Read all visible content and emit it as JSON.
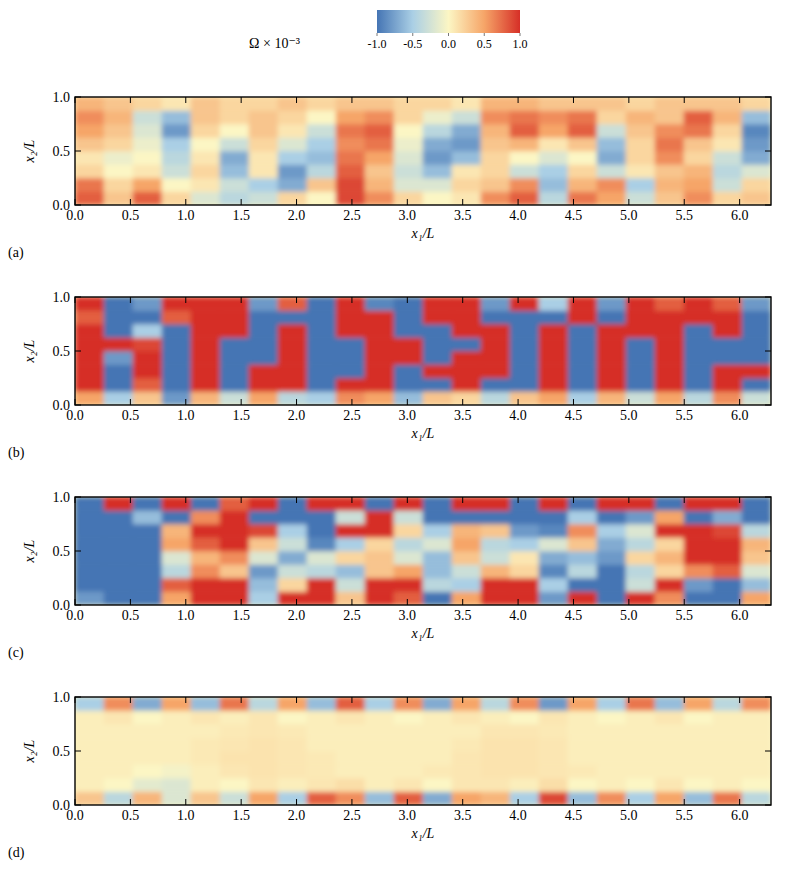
{
  "colorbar": {
    "title": "Ω × 10⁻³",
    "range": [
      -1,
      1
    ],
    "ticks": [
      {
        "value": -1,
        "label": "-1.0"
      },
      -0.5,
      {
        "value": 0,
        "label": "0.0"
      },
      0.5,
      {
        "value": 1,
        "label": "1.0"
      }
    ]
  },
  "chart_data": [
    {
      "type": "heatmap",
      "label": "(a)",
      "x_label": "x₁/L",
      "y_label": "x₂/L",
      "xlim": [
        0,
        6.2832
      ],
      "ylim": [
        0,
        1
      ],
      "xticks": [
        {
          "value": 0,
          "label": "0.0"
        },
        0.5,
        {
          "value": 1,
          "label": "1.0"
        },
        1.5,
        {
          "value": 2,
          "label": "2.0"
        },
        2.5,
        {
          "value": 3,
          "label": "3.0"
        },
        3.5,
        {
          "value": 4,
          "label": "4.0"
        },
        4.5,
        {
          "value": 5,
          "label": "5.0"
        },
        5.5,
        {
          "value": 6,
          "label": "6.0"
        }
      ],
      "yticks": [
        {
          "value": 0,
          "label": "0.0"
        },
        0.5,
        {
          "value": 1,
          "label": "1.0"
        }
      ],
      "cells": [
        [
          0.8,
          0.3,
          0.8,
          0.2,
          -0.2,
          -0.4,
          -0.3,
          0.2,
          0.0,
          0.9,
          0.6,
          0.2,
          0.0,
          0.1,
          0.6,
          0.8,
          -0.4,
          0.7,
          0.5,
          -0.3,
          0.3,
          0.6,
          0.2,
          0.3
        ],
        [
          0.7,
          0.2,
          0.5,
          0.0,
          0.1,
          -0.3,
          -0.5,
          -0.7,
          0.3,
          0.9,
          0.4,
          -0.2,
          -0.2,
          0.2,
          0.3,
          0.6,
          -0.6,
          0.4,
          0.6,
          -0.5,
          0.4,
          0.5,
          -0.3,
          0.2
        ],
        [
          0.2,
          0.0,
          0.1,
          -0.3,
          0.2,
          -0.6,
          0.1,
          -0.8,
          -0.4,
          0.8,
          0.3,
          -0.3,
          -0.6,
          0.1,
          0.2,
          -0.3,
          -0.5,
          0.2,
          -0.3,
          0.1,
          0.3,
          0.4,
          -0.4,
          -0.2
        ],
        [
          0.1,
          -0.1,
          0.0,
          -0.4,
          0.1,
          -0.7,
          0.1,
          -0.5,
          -0.6,
          0.7,
          0.5,
          -0.2,
          -0.8,
          -0.6,
          0.2,
          0.0,
          -0.2,
          0.0,
          -0.7,
          0.2,
          0.6,
          0.2,
          -0.3,
          -0.7
        ],
        [
          0.3,
          0.2,
          -0.1,
          -0.5,
          0.0,
          -0.3,
          0.2,
          -0.2,
          -0.5,
          0.6,
          0.7,
          -0.1,
          -0.7,
          -0.8,
          0.3,
          0.4,
          0.1,
          0.3,
          -0.6,
          0.2,
          0.7,
          0.3,
          0.1,
          -0.8
        ],
        [
          0.5,
          0.3,
          -0.2,
          -0.8,
          0.2,
          0.0,
          0.3,
          0.1,
          -0.3,
          0.7,
          0.8,
          0.0,
          -0.4,
          -0.7,
          0.4,
          0.8,
          0.5,
          0.8,
          -0.3,
          0.3,
          0.6,
          0.7,
          0.2,
          -0.9
        ],
        [
          0.6,
          0.4,
          -0.3,
          -0.6,
          0.3,
          0.2,
          0.3,
          0.2,
          0.0,
          0.5,
          0.6,
          0.2,
          -0.1,
          -0.3,
          0.6,
          0.7,
          0.6,
          0.7,
          0.2,
          0.4,
          0.3,
          0.8,
          0.4,
          -0.6
        ],
        [
          0.4,
          0.3,
          0.2,
          0.1,
          0.3,
          0.2,
          0.2,
          0.3,
          0.2,
          0.3,
          0.3,
          0.2,
          0.2,
          0.1,
          0.4,
          0.4,
          0.3,
          0.3,
          0.3,
          0.2,
          0.3,
          0.3,
          0.3,
          0.2
        ]
      ]
    },
    {
      "type": "heatmap",
      "label": "(b)",
      "x_label": "x₁/L",
      "y_label": "x₂/L",
      "xlim": [
        0,
        6.2832
      ],
      "ylim": [
        0,
        1
      ],
      "xticks": [
        {
          "value": 0,
          "label": "0.0"
        },
        0.5,
        {
          "value": 1,
          "label": "1.0"
        },
        1.5,
        {
          "value": 2,
          "label": "2.0"
        },
        2.5,
        {
          "value": 3,
          "label": "3.0"
        },
        3.5,
        {
          "value": 4,
          "label": "4.0"
        },
        4.5,
        {
          "value": 5,
          "label": "5.0"
        },
        5.5,
        {
          "value": 6,
          "label": "6.0"
        }
      ],
      "yticks": [
        {
          "value": 0,
          "label": "0.0"
        },
        0.5,
        {
          "value": 1,
          "label": "1.0"
        }
      ],
      "cells": [
        [
          0.5,
          -0.5,
          0.3,
          -0.8,
          0.4,
          -0.3,
          0.5,
          -0.4,
          -0.5,
          0.6,
          0.5,
          -0.6,
          0.3,
          0.2,
          -0.4,
          0.3,
          0.5,
          -0.5,
          0.4,
          -0.3,
          0.5,
          -0.4,
          0.6,
          -0.3
        ],
        [
          1.5,
          -1.2,
          0.8,
          -1.5,
          1.5,
          -1.5,
          1.5,
          1.5,
          -1.5,
          1.5,
          1.5,
          -1.5,
          -1.5,
          1.5,
          -1.5,
          -1.5,
          1.5,
          -1.5,
          1.5,
          -1.5,
          1.5,
          -1.5,
          1.5,
          -1.5
        ],
        [
          1.5,
          -1.5,
          1.5,
          -1.2,
          1.5,
          -1.5,
          1.5,
          1.5,
          -1.5,
          -1.2,
          1.5,
          -1.5,
          1.5,
          1.5,
          1.5,
          -1.5,
          1.5,
          -1.5,
          1.5,
          -1.5,
          1.5,
          -1.5,
          1.5,
          1.5
        ],
        [
          1.5,
          -0.8,
          1.5,
          -1.5,
          1.5,
          -1.5,
          -1.5,
          1.5,
          -1.5,
          -1.5,
          1.5,
          1.2,
          -1.5,
          1.5,
          1.5,
          -1.5,
          1.5,
          -1.5,
          1.5,
          -1.5,
          1.5,
          -1.5,
          -1.5,
          -1.5
        ],
        [
          1.5,
          1.2,
          0.9,
          -1.5,
          1.5,
          -1.2,
          -1.5,
          1.5,
          -1.5,
          -1.5,
          1.5,
          1.5,
          -1.5,
          -1.0,
          1.5,
          -1.5,
          1.5,
          -1.5,
          1.5,
          -1.5,
          1.5,
          -1.5,
          -1.5,
          -1.5
        ],
        [
          1.2,
          -1.5,
          -0.5,
          -1.5,
          1.5,
          1.5,
          -1.5,
          1.5,
          -1.5,
          1.5,
          1.5,
          -1.5,
          -1.5,
          1.5,
          1.5,
          -1.5,
          1.5,
          -1.5,
          1.5,
          1.5,
          1.5,
          -1.5,
          1.5,
          -1.5
        ],
        [
          0.8,
          -1.5,
          -1.5,
          0.8,
          1.5,
          1.5,
          -1.5,
          -1.0,
          -1.5,
          1.5,
          1.5,
          -1.5,
          1.5,
          1.5,
          -1.5,
          -1.5,
          -1.5,
          1.5,
          -1.2,
          1.5,
          1.5,
          1.5,
          1.5,
          -1.5
        ],
        [
          1.0,
          -1.0,
          -0.8,
          1.5,
          1.2,
          1.0,
          -0.8,
          0.8,
          -1.0,
          1.0,
          -0.9,
          -1.0,
          1.2,
          1.0,
          -0.8,
          1.0,
          -0.5,
          1.0,
          -0.8,
          1.0,
          0.8,
          1.0,
          0.8,
          -0.8
        ]
      ]
    },
    {
      "type": "heatmap",
      "label": "(c)",
      "x_label": "x₁/L",
      "y_label": "x₂/L",
      "xlim": [
        0,
        6.2832
      ],
      "ylim": [
        0,
        1
      ],
      "xticks": [
        {
          "value": 0,
          "label": "0.0"
        },
        0.5,
        {
          "value": 1,
          "label": "1.0"
        },
        1.5,
        {
          "value": 2,
          "label": "2.0"
        },
        2.5,
        {
          "value": 3,
          "label": "3.0"
        },
        3.5,
        {
          "value": 4,
          "label": "4.0"
        },
        4.5,
        {
          "value": 5,
          "label": "5.0"
        },
        5.5,
        {
          "value": 6,
          "label": "6.0"
        }
      ],
      "yticks": [
        {
          "value": 0,
          "label": "0.0"
        },
        0.5,
        {
          "value": 1,
          "label": "1.0"
        }
      ],
      "cells": [
        [
          -0.8,
          -1.2,
          -1.0,
          0.5,
          1.5,
          1.5,
          -0.5,
          1.2,
          1.5,
          0.3,
          1.5,
          0.8,
          -1.0,
          0.5,
          1.5,
          1.5,
          -0.8,
          1.2,
          -1.0,
          1.5,
          0.6,
          -1.2,
          -1.5,
          0.5
        ],
        [
          -1.5,
          -1.5,
          -1.3,
          0.8,
          1.5,
          1.2,
          -0.6,
          0.2,
          1.5,
          -0.3,
          1.2,
          1.5,
          -0.4,
          -0.5,
          1.5,
          1.5,
          -0.5,
          -1.0,
          -1.5,
          -0.3,
          1.0,
          -0.8,
          -1.5,
          -0.6
        ],
        [
          -1.5,
          -1.5,
          -1.2,
          -0.4,
          0.6,
          0.3,
          -0.8,
          -0.3,
          -0.4,
          -0.6,
          0.3,
          0.5,
          -0.6,
          -0.3,
          0.4,
          0.2,
          -0.9,
          -0.4,
          -1.2,
          -0.4,
          0.2,
          0.6,
          0.8,
          -0.2
        ],
        [
          -1.5,
          -1.5,
          -1.5,
          -0.2,
          0.4,
          0.6,
          -0.2,
          -0.7,
          -0.2,
          0.2,
          0.3,
          -0.2,
          -0.6,
          0.3,
          -0.3,
          0.1,
          -0.7,
          -0.6,
          -0.8,
          0.2,
          0.4,
          1.2,
          1.5,
          0.3
        ],
        [
          -1.5,
          -1.5,
          -1.3,
          0.5,
          0.8,
          1.5,
          0.3,
          -0.3,
          -0.9,
          -0.5,
          0.2,
          -0.4,
          -0.2,
          0.5,
          -0.4,
          -0.5,
          -0.2,
          0.3,
          -0.7,
          -0.4,
          0.2,
          1.4,
          1.5,
          0.4
        ],
        [
          -1.5,
          -1.5,
          -1.0,
          0.4,
          1.5,
          1.5,
          0.9,
          -0.5,
          -1.2,
          1.2,
          1.5,
          0.2,
          -0.5,
          0.4,
          0.3,
          -0.8,
          -0.9,
          0.6,
          -0.5,
          -0.2,
          1.2,
          1.5,
          0.9,
          -0.4
        ],
        [
          -1.5,
          -1.5,
          -0.6,
          -1.5,
          0.6,
          1.0,
          -1.2,
          -1.5,
          -1.5,
          -0.3,
          1.2,
          -0.3,
          -1.5,
          -1.5,
          -1.2,
          -1.5,
          -1.5,
          -0.5,
          -1.5,
          -0.8,
          0.5,
          -1.0,
          -0.7,
          -1.5
        ],
        [
          -1.0,
          1.5,
          -1.2,
          1.2,
          -1.5,
          0.8,
          1.5,
          -1.0,
          1.2,
          1.5,
          -1.3,
          1.5,
          -1.2,
          1.0,
          1.5,
          -1.0,
          1.2,
          -1.5,
          1.5,
          1.2,
          -1.0,
          1.5,
          1.2,
          -1.0
        ]
      ]
    },
    {
      "type": "heatmap",
      "label": "(d)",
      "x_label": "x₁/L",
      "y_label": "x₂/L",
      "xlim": [
        0,
        6.2832
      ],
      "ylim": [
        0,
        1
      ],
      "xticks": [
        {
          "value": 0,
          "label": "0.0"
        },
        0.5,
        {
          "value": 1,
          "label": "1.0"
        },
        1.5,
        {
          "value": 2,
          "label": "2.0"
        },
        2.5,
        {
          "value": 3,
          "label": "3.0"
        },
        3.5,
        {
          "value": 4,
          "label": "4.0"
        },
        4.5,
        {
          "value": 5,
          "label": "5.0"
        },
        5.5,
        {
          "value": 6,
          "label": "6.0"
        }
      ],
      "yticks": [
        {
          "value": 0,
          "label": "0.0"
        },
        0.5,
        {
          "value": 1,
          "label": "1.0"
        }
      ],
      "cells": [
        [
          0.3,
          -0.4,
          0.4,
          -0.2,
          0.3,
          -0.3,
          0.5,
          -0.5,
          0.8,
          0.6,
          -0.6,
          0.8,
          -0.7,
          0.5,
          0.4,
          -0.5,
          0.9,
          -0.6,
          0.6,
          -0.5,
          0.5,
          -0.6,
          0.7,
          -0.4
        ],
        [
          0.05,
          0.0,
          -0.15,
          -0.2,
          0.05,
          0.0,
          0.1,
          0.05,
          0.1,
          0.15,
          0.05,
          0.1,
          0.0,
          0.1,
          0.1,
          0.05,
          0.15,
          0.0,
          0.05,
          0.0,
          0.1,
          0.0,
          0.05,
          0.0
        ],
        [
          0.05,
          0.05,
          0.0,
          -0.05,
          0.05,
          0.1,
          0.12,
          0.1,
          0.08,
          0.05,
          0.05,
          0.05,
          0.08,
          0.1,
          0.12,
          0.12,
          0.1,
          0.08,
          0.05,
          0.05,
          0.05,
          0.05,
          0.05,
          0.05
        ],
        [
          0.05,
          0.05,
          0.05,
          0.05,
          0.08,
          0.12,
          0.12,
          0.1,
          0.08,
          0.05,
          0.05,
          0.05,
          0.05,
          0.1,
          0.12,
          0.12,
          0.1,
          0.05,
          0.05,
          0.05,
          0.05,
          0.05,
          0.05,
          0.05
        ],
        [
          0.05,
          0.05,
          0.05,
          0.05,
          0.08,
          0.1,
          0.12,
          0.1,
          0.05,
          0.05,
          0.05,
          0.05,
          0.05,
          0.08,
          0.12,
          0.12,
          0.1,
          0.05,
          0.05,
          0.05,
          0.05,
          0.05,
          0.05,
          0.05
        ],
        [
          0.05,
          0.05,
          0.05,
          0.05,
          0.05,
          0.08,
          0.1,
          0.08,
          0.05,
          0.05,
          0.05,
          0.05,
          0.05,
          0.05,
          0.1,
          0.1,
          0.08,
          0.05,
          0.05,
          0.05,
          0.05,
          0.05,
          0.05,
          0.05
        ],
        [
          0.05,
          0.1,
          0.0,
          0.05,
          0.1,
          0.05,
          0.1,
          0.0,
          0.05,
          0.1,
          0.05,
          0.0,
          0.05,
          0.1,
          0.05,
          0.0,
          0.1,
          0.05,
          0.0,
          0.05,
          0.1,
          0.0,
          0.05,
          0.05
        ],
        [
          -0.5,
          0.6,
          -0.7,
          0.5,
          -0.6,
          0.7,
          -0.4,
          0.5,
          -0.6,
          0.8,
          -0.5,
          0.6,
          -0.7,
          0.5,
          -0.4,
          0.6,
          -0.8,
          0.5,
          -0.5,
          0.7,
          -0.6,
          0.5,
          -0.4,
          0.6
        ]
      ]
    }
  ]
}
